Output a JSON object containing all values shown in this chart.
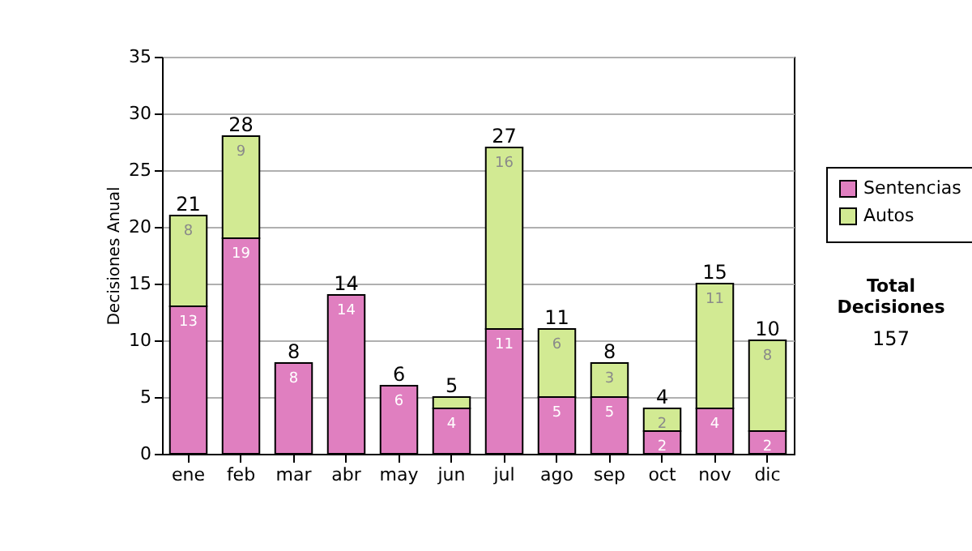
{
  "chart_data": {
    "type": "bar",
    "stacked": true,
    "ylabel": "Decisiones Anual",
    "categories": [
      "ene",
      "feb",
      "mar",
      "abr",
      "may",
      "jun",
      "jul",
      "ago",
      "sep",
      "oct",
      "nov",
      "dic"
    ],
    "series": [
      {
        "name": "Sentencias",
        "color": "#e07fc0",
        "values": [
          13,
          19,
          8,
          14,
          6,
          4,
          11,
          5,
          5,
          2,
          4,
          2
        ],
        "value_labels": [
          "13",
          "19",
          "8",
          "14",
          "6",
          "4",
          "11",
          "5",
          "5",
          "2",
          "4",
          "2"
        ]
      },
      {
        "name": "Autos",
        "color": "#d2ea93",
        "values": [
          8,
          9,
          0,
          0,
          0,
          1,
          16,
          6,
          3,
          2,
          11,
          8
        ],
        "value_labels": [
          "8",
          "9",
          null,
          null,
          null,
          null,
          "16",
          "6",
          "3",
          "2",
          "11",
          "8"
        ]
      }
    ],
    "totals": [
      "21",
      "28",
      "8",
      "14",
      "6",
      "5",
      "27",
      "11",
      "8",
      "4",
      "15",
      "10"
    ],
    "ylim": [
      0,
      35
    ],
    "yticks": [
      0,
      5,
      10,
      15,
      20,
      25,
      30,
      35
    ],
    "grid": "y",
    "legend": "right",
    "annotations": [
      "Total Decisiones",
      "157"
    ]
  }
}
